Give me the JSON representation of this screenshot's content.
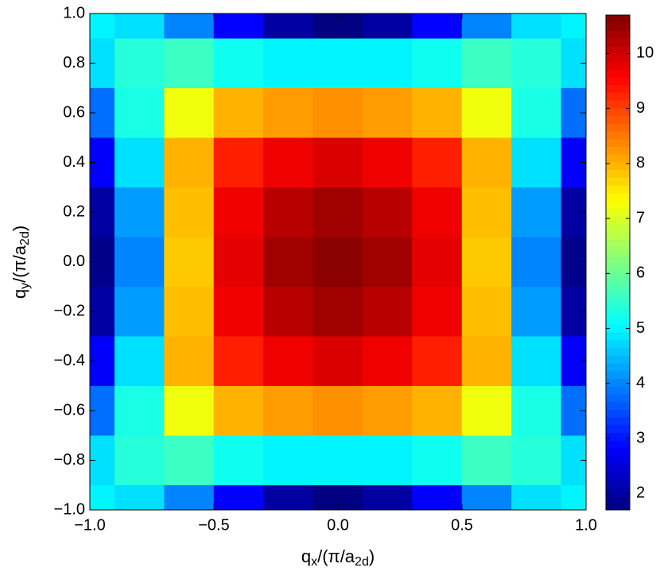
{
  "chart_data": {
    "type": "heatmap",
    "x_label": [
      "q",
      "x",
      "/(π/a",
      "2d",
      ")"
    ],
    "y_label": [
      "q",
      "y",
      "/(π/a",
      "2d",
      ")"
    ],
    "x": [
      -1.0,
      -0.8,
      -0.6,
      -0.4,
      -0.2,
      0.0,
      0.2,
      0.4,
      0.6,
      0.8,
      1.0
    ],
    "y": [
      -1.0,
      -0.8,
      -0.6,
      -0.4,
      -0.2,
      0.0,
      0.2,
      0.4,
      0.6,
      0.8,
      1.0
    ],
    "z": [
      [
        5.0,
        4.8,
        4.0,
        2.8,
        2.0,
        1.7,
        2.0,
        2.8,
        4.0,
        4.8,
        5.0
      ],
      [
        4.8,
        5.4,
        5.6,
        5.2,
        5.0,
        5.0,
        5.0,
        5.2,
        5.6,
        5.4,
        4.8
      ],
      [
        3.8,
        5.3,
        7.2,
        8.0,
        8.2,
        8.3,
        8.2,
        8.0,
        7.2,
        5.3,
        3.8
      ],
      [
        2.8,
        4.8,
        8.0,
        9.3,
        9.7,
        9.9,
        9.7,
        9.3,
        8.0,
        4.8,
        2.8
      ],
      [
        2.0,
        4.2,
        7.9,
        9.7,
        10.2,
        10.4,
        10.2,
        9.7,
        7.9,
        4.2,
        2.0
      ],
      [
        1.8,
        4.0,
        7.8,
        9.8,
        10.4,
        10.6,
        10.4,
        9.8,
        7.8,
        4.0,
        1.8
      ],
      [
        2.0,
        4.2,
        7.9,
        9.7,
        10.2,
        10.4,
        10.2,
        9.7,
        7.9,
        4.2,
        2.0
      ],
      [
        2.8,
        4.8,
        8.0,
        9.3,
        9.7,
        9.9,
        9.7,
        9.3,
        8.0,
        4.8,
        2.8
      ],
      [
        3.8,
        5.3,
        7.2,
        8.0,
        8.2,
        8.3,
        8.2,
        8.0,
        7.2,
        5.3,
        3.8
      ],
      [
        4.8,
        5.4,
        5.6,
        5.2,
        5.0,
        5.0,
        5.0,
        5.2,
        5.6,
        5.4,
        4.8
      ],
      [
        5.0,
        4.8,
        4.0,
        2.8,
        2.0,
        1.7,
        2.0,
        2.8,
        4.0,
        4.8,
        5.0
      ]
    ],
    "colormap": "jet",
    "xlim": [
      -1.0,
      1.0
    ],
    "ylim": [
      -1.0,
      1.0
    ],
    "zlim": [
      1.7,
      10.7
    ],
    "xticks": [
      {
        "value": -1.0,
        "label": "−1.0"
      },
      {
        "value": -0.5,
        "label": "−0.5"
      },
      {
        "value": 0.0,
        "label": "0.0"
      },
      {
        "value": 0.5,
        "label": "0.5"
      },
      {
        "value": 1.0,
        "label": "1.0"
      }
    ],
    "yticks": [
      {
        "value": -1.0,
        "label": "−1.0"
      },
      {
        "value": -0.8,
        "label": "−0.8"
      },
      {
        "value": -0.6,
        "label": "−0.6"
      },
      {
        "value": -0.4,
        "label": "−0.4"
      },
      {
        "value": -0.2,
        "label": "−0.2"
      },
      {
        "value": 0.0,
        "label": "0.0"
      },
      {
        "value": 0.2,
        "label": "0.2"
      },
      {
        "value": 0.4,
        "label": "0.4"
      },
      {
        "value": 0.6,
        "label": "0.6"
      },
      {
        "value": 0.8,
        "label": "0.8"
      },
      {
        "value": 1.0,
        "label": "1.0"
      }
    ],
    "zticks": [
      2,
      3,
      4,
      5,
      6,
      7,
      8,
      9,
      10
    ]
  }
}
